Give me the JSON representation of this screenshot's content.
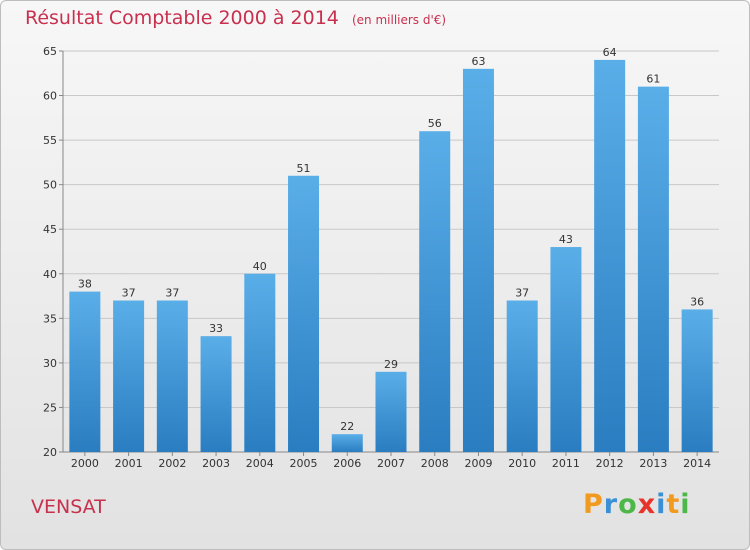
{
  "title": "Résultat Comptable 2000 à 2014",
  "subtitle": "(en milliers d'€)",
  "commune": "VENSAT",
  "logo": {
    "letters": [
      "P",
      "r",
      "o",
      "x",
      "i",
      "t",
      "i"
    ],
    "colors": [
      "#f29a1f",
      "#3a8fd6",
      "#4db848",
      "#e8332a",
      "#3a8fd6",
      "#f29a1f",
      "#4db848"
    ]
  },
  "colors": {
    "bar_light": "#5aaee8",
    "bar_dark": "#2a7dc0",
    "title": "#c8304e",
    "grid": "#c8c8c8"
  },
  "chart_data": {
    "type": "bar",
    "title": "Résultat Comptable 2000 à 2014",
    "categories": [
      "2000",
      "2001",
      "2002",
      "2003",
      "2004",
      "2005",
      "2006",
      "2007",
      "2008",
      "2009",
      "2010",
      "2011",
      "2012",
      "2013",
      "2014"
    ],
    "values": [
      38,
      37,
      37,
      33,
      40,
      51,
      22,
      29,
      56,
      63,
      37,
      43,
      64,
      61,
      36
    ],
    "ylim": [
      20,
      65
    ],
    "yticks": [
      20,
      25,
      30,
      35,
      40,
      45,
      50,
      55,
      60,
      65
    ],
    "grid": true
  }
}
